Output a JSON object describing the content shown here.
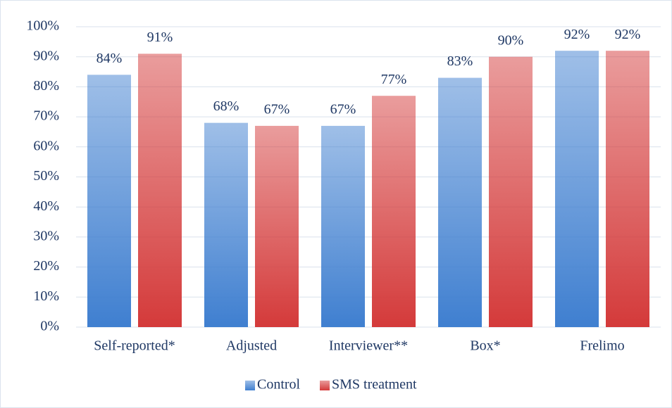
{
  "chart_data": {
    "type": "bar",
    "categories": [
      "Self-reported*",
      "Adjusted",
      "Interviewer**",
      "Box*",
      "Frelimo"
    ],
    "series": [
      {
        "name": "Control",
        "color": "#3f7fd0",
        "values": [
          84,
          68,
          67,
          83,
          92
        ],
        "value_labels": [
          "84%",
          "68%",
          "67%",
          "83%",
          "92%"
        ]
      },
      {
        "name": "SMS treatment",
        "color": "#d43a3a",
        "values": [
          91,
          67,
          77,
          90,
          92
        ],
        "value_labels": [
          "91%",
          "67%",
          "77%",
          "90%",
          "92%"
        ]
      }
    ],
    "ylim": [
      0,
      100
    ],
    "yticks": [
      {
        "value": 0,
        "label": "0%"
      },
      {
        "value": 10,
        "label": "10%"
      },
      {
        "value": 20,
        "label": "20%"
      },
      {
        "value": 30,
        "label": "30%"
      },
      {
        "value": 40,
        "label": "40%"
      },
      {
        "value": 50,
        "label": "50%"
      },
      {
        "value": 60,
        "label": "60%"
      },
      {
        "value": 70,
        "label": "70%"
      },
      {
        "value": 80,
        "label": "80%"
      },
      {
        "value": 90,
        "label": "90%"
      },
      {
        "value": 100,
        "label": "100%"
      }
    ],
    "grid": true,
    "legend": "bottom"
  }
}
